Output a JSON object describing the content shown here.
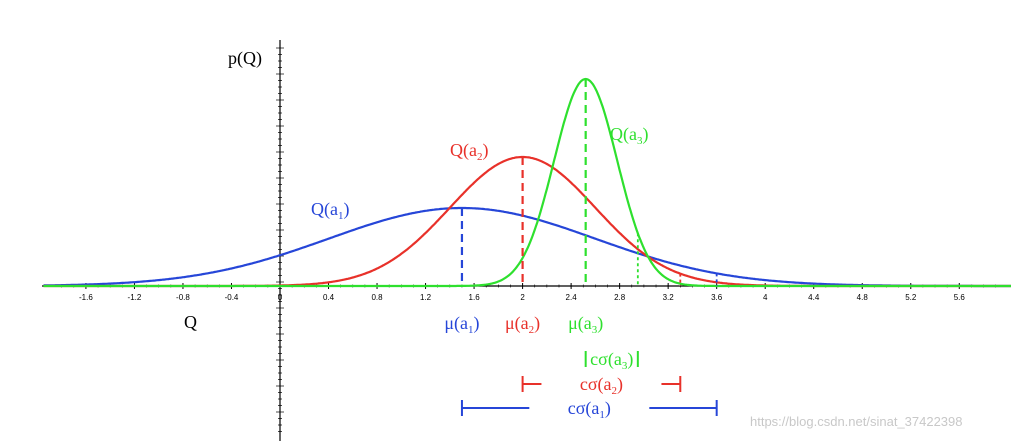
{
  "chart_data": {
    "type": "line",
    "title": "",
    "xlabel": "Q",
    "ylabel": "p(Q)",
    "xlim": [
      -1.95,
      6.1
    ],
    "ylim": [
      0,
      1.0
    ],
    "x_ticks": [
      -1.6,
      -1.2,
      -0.8,
      -0.4,
      0,
      0.4,
      0.8,
      1.2,
      1.6,
      2,
      2.4,
      2.8,
      3.2,
      3.6,
      4,
      4.4,
      4.8,
      5.2,
      5.6
    ],
    "series": [
      {
        "name": "Q(a1)",
        "base": "Q(a",
        "sub": "1",
        "suffix": ")",
        "color": "#2646d8",
        "mu": 1.5,
        "sigma": 1.1,
        "mu_label": {
          "base": "μ(a",
          "sub": "1",
          "suffix": ")"
        },
        "csigma_label": {
          "base": "cσ(a",
          "sub": "1",
          "suffix": ")"
        },
        "bar_range": [
          1.5,
          3.6
        ]
      },
      {
        "name": "Q(a2)",
        "base": "Q(a",
        "sub": "2",
        "suffix": ")",
        "color": "#e8312a",
        "mu": 2.0,
        "sigma": 0.6,
        "mu_label": {
          "base": "μ(a",
          "sub": "2",
          "suffix": ")"
        },
        "csigma_label": {
          "base": "cσ(a",
          "sub": "2",
          "suffix": ")"
        },
        "bar_range": [
          2.0,
          3.3
        ]
      },
      {
        "name": "Q(a3)",
        "base": "Q(a",
        "sub": "3",
        "suffix": ")",
        "color": "#2ee02e",
        "mu": 2.52,
        "sigma": 0.26,
        "mu_label": {
          "base": "μ(a",
          "sub": "3",
          "suffix": ")"
        },
        "csigma_label": {
          "base": "cσ(a",
          "sub": "3",
          "suffix": ")"
        },
        "bar_range": [
          2.52,
          2.95
        ]
      }
    ]
  },
  "watermark": "https://blog.csdn.net/sinat_37422398"
}
